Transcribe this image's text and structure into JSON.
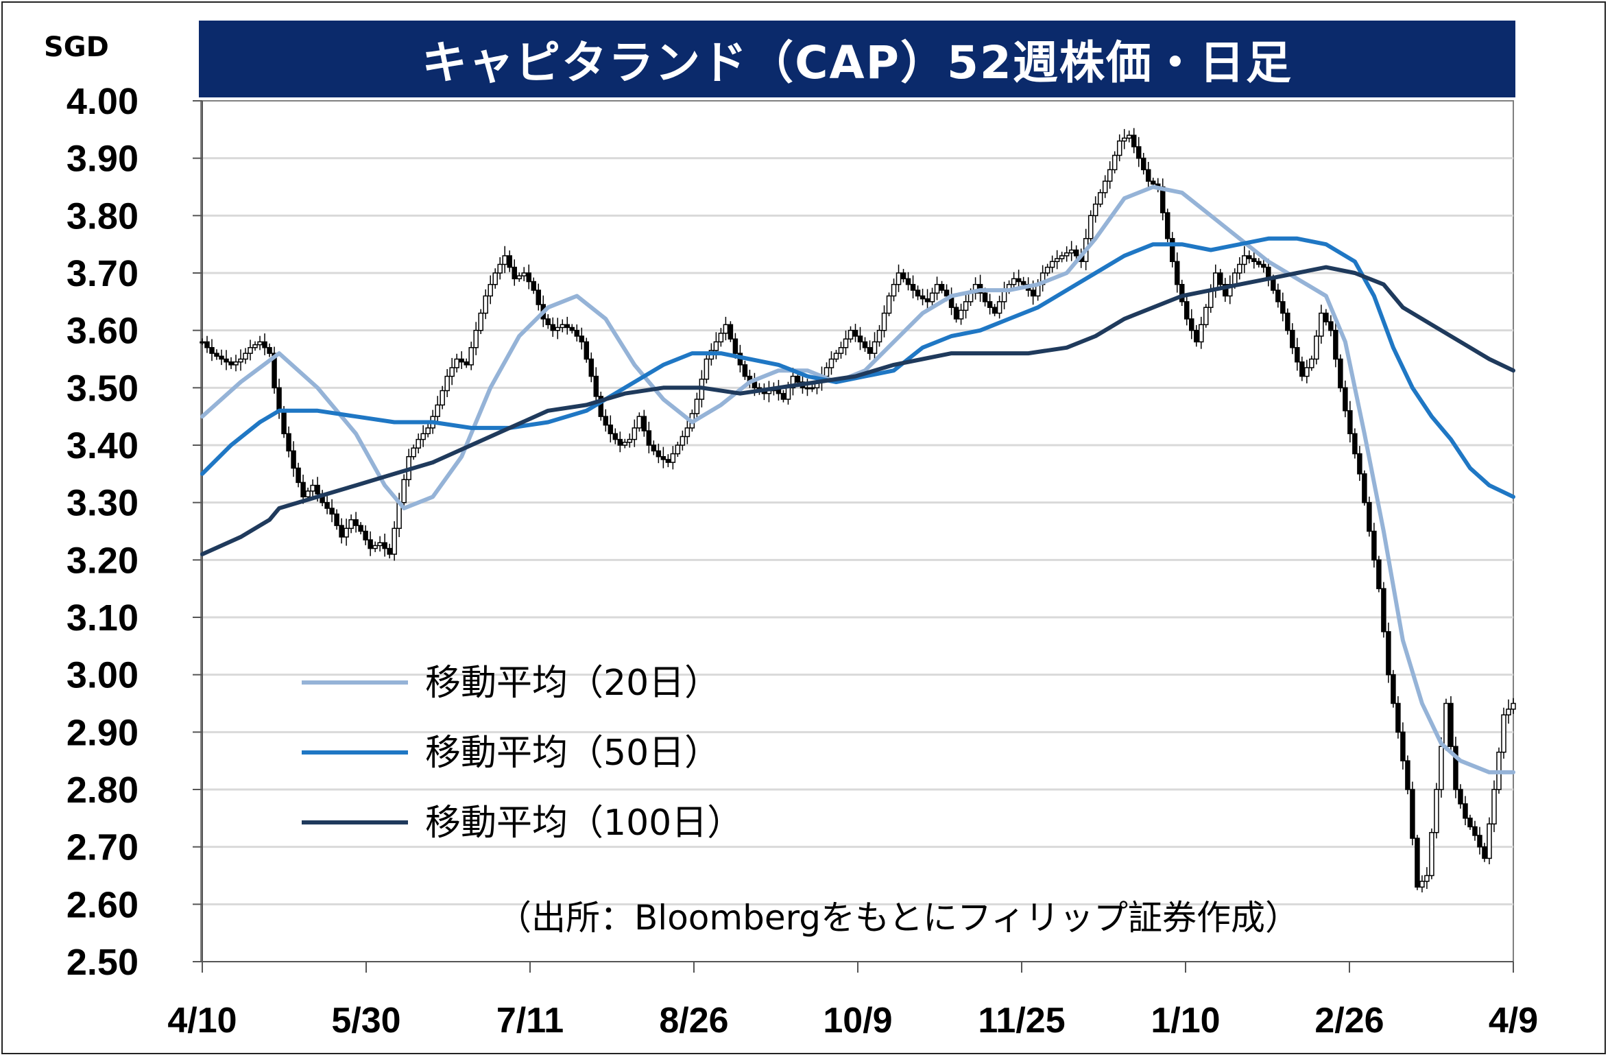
{
  "title": "キャピタランド（CAP）52週株価・日足",
  "unit": "SGD",
  "source": "（出所：Bloombergをもとにフィリップ証券作成）",
  "chart_data": {
    "type": "candlestick",
    "title": "キャピタランド（CAP）52週株価・日足",
    "ylabel": "SGD",
    "ylim": [
      2.5,
      4.0
    ],
    "y_ticks": [
      "4.00",
      "3.90",
      "3.80",
      "3.70",
      "3.60",
      "3.50",
      "3.40",
      "3.30",
      "3.20",
      "3.10",
      "3.00",
      "2.90",
      "2.80",
      "2.70",
      "2.60",
      "2.50"
    ],
    "x_ticks": [
      "4/10",
      "5/30",
      "7/11",
      "8/26",
      "10/9",
      "11/25",
      "1/10",
      "2/26",
      "4/9"
    ],
    "grid": true,
    "legend_position": "lower-left",
    "close_anchors": [
      [
        0,
        3.58
      ],
      [
        2,
        3.56
      ],
      [
        4,
        3.55
      ],
      [
        6,
        3.54
      ],
      [
        8,
        3.55
      ],
      [
        10,
        3.57
      ],
      [
        12,
        3.58
      ],
      [
        14,
        3.56
      ],
      [
        15,
        3.5
      ],
      [
        17,
        3.42
      ],
      [
        19,
        3.36
      ],
      [
        21,
        3.31
      ],
      [
        23,
        3.33
      ],
      [
        25,
        3.3
      ],
      [
        27,
        3.28
      ],
      [
        29,
        3.24
      ],
      [
        31,
        3.27
      ],
      [
        33,
        3.25
      ],
      [
        35,
        3.22
      ],
      [
        37,
        3.23
      ],
      [
        39,
        3.21
      ],
      [
        41,
        3.3
      ],
      [
        43,
        3.38
      ],
      [
        45,
        3.41
      ],
      [
        47,
        3.43
      ],
      [
        49,
        3.47
      ],
      [
        51,
        3.52
      ],
      [
        53,
        3.55
      ],
      [
        55,
        3.54
      ],
      [
        57,
        3.6
      ],
      [
        59,
        3.66
      ],
      [
        61,
        3.7
      ],
      [
        63,
        3.73
      ],
      [
        65,
        3.69
      ],
      [
        67,
        3.7
      ],
      [
        69,
        3.67
      ],
      [
        71,
        3.62
      ],
      [
        73,
        3.6
      ],
      [
        75,
        3.61
      ],
      [
        77,
        3.6
      ],
      [
        79,
        3.58
      ],
      [
        81,
        3.52
      ],
      [
        83,
        3.45
      ],
      [
        85,
        3.42
      ],
      [
        87,
        3.4
      ],
      [
        89,
        3.41
      ],
      [
        91,
        3.45
      ],
      [
        93,
        3.4
      ],
      [
        95,
        3.38
      ],
      [
        97,
        3.37
      ],
      [
        99,
        3.4
      ],
      [
        101,
        3.43
      ],
      [
        103,
        3.48
      ],
      [
        105,
        3.55
      ],
      [
        107,
        3.58
      ],
      [
        109,
        3.61
      ],
      [
        111,
        3.56
      ],
      [
        113,
        3.52
      ],
      [
        115,
        3.5
      ],
      [
        117,
        3.49
      ],
      [
        119,
        3.5
      ],
      [
        121,
        3.48
      ],
      [
        123,
        3.52
      ],
      [
        125,
        3.5
      ],
      [
        127,
        3.5
      ],
      [
        129,
        3.52
      ],
      [
        131,
        3.55
      ],
      [
        133,
        3.57
      ],
      [
        135,
        3.6
      ],
      [
        137,
        3.58
      ],
      [
        139,
        3.56
      ],
      [
        141,
        3.6
      ],
      [
        143,
        3.66
      ],
      [
        145,
        3.7
      ],
      [
        147,
        3.68
      ],
      [
        149,
        3.66
      ],
      [
        151,
        3.65
      ],
      [
        153,
        3.68
      ],
      [
        155,
        3.66
      ],
      [
        157,
        3.62
      ],
      [
        159,
        3.65
      ],
      [
        161,
        3.68
      ],
      [
        163,
        3.65
      ],
      [
        165,
        3.63
      ],
      [
        167,
        3.67
      ],
      [
        169,
        3.69
      ],
      [
        171,
        3.68
      ],
      [
        173,
        3.66
      ],
      [
        175,
        3.7
      ],
      [
        177,
        3.72
      ],
      [
        179,
        3.73
      ],
      [
        181,
        3.74
      ],
      [
        183,
        3.72
      ],
      [
        185,
        3.8
      ],
      [
        187,
        3.84
      ],
      [
        189,
        3.88
      ],
      [
        191,
        3.93
      ],
      [
        193,
        3.94
      ],
      [
        195,
        3.9
      ],
      [
        197,
        3.86
      ],
      [
        199,
        3.85
      ],
      [
        201,
        3.76
      ],
      [
        203,
        3.68
      ],
      [
        205,
        3.62
      ],
      [
        207,
        3.58
      ],
      [
        209,
        3.64
      ],
      [
        211,
        3.7
      ],
      [
        213,
        3.66
      ],
      [
        215,
        3.7
      ],
      [
        217,
        3.73
      ],
      [
        219,
        3.72
      ],
      [
        221,
        3.71
      ],
      [
        223,
        3.67
      ],
      [
        225,
        3.63
      ],
      [
        227,
        3.57
      ],
      [
        229,
        3.52
      ],
      [
        231,
        3.55
      ],
      [
        233,
        3.63
      ],
      [
        235,
        3.6
      ],
      [
        237,
        3.5
      ],
      [
        239,
        3.42
      ],
      [
        241,
        3.35
      ],
      [
        243,
        3.25
      ],
      [
        245,
        3.15
      ],
      [
        247,
        3.0
      ],
      [
        249,
        2.9
      ],
      [
        251,
        2.8
      ],
      [
        253,
        2.63
      ],
      [
        255,
        2.65
      ],
      [
        257,
        2.8
      ],
      [
        259,
        2.95
      ],
      [
        261,
        2.8
      ],
      [
        263,
        2.75
      ],
      [
        265,
        2.72
      ],
      [
        267,
        2.68
      ],
      [
        269,
        2.8
      ],
      [
        271,
        2.93
      ],
      [
        273,
        2.95
      ]
    ],
    "series": [
      {
        "name": "移動平均（20日）",
        "color": "#95b3d7",
        "points": [
          [
            0,
            3.45
          ],
          [
            8,
            3.51
          ],
          [
            16,
            3.56
          ],
          [
            24,
            3.5
          ],
          [
            32,
            3.42
          ],
          [
            38,
            3.33
          ],
          [
            42,
            3.29
          ],
          [
            48,
            3.31
          ],
          [
            54,
            3.38
          ],
          [
            60,
            3.5
          ],
          [
            66,
            3.59
          ],
          [
            72,
            3.64
          ],
          [
            78,
            3.66
          ],
          [
            84,
            3.62
          ],
          [
            90,
            3.54
          ],
          [
            96,
            3.48
          ],
          [
            102,
            3.44
          ],
          [
            108,
            3.47
          ],
          [
            114,
            3.51
          ],
          [
            120,
            3.53
          ],
          [
            126,
            3.53
          ],
          [
            132,
            3.51
          ],
          [
            138,
            3.53
          ],
          [
            144,
            3.58
          ],
          [
            150,
            3.63
          ],
          [
            156,
            3.66
          ],
          [
            162,
            3.67
          ],
          [
            168,
            3.67
          ],
          [
            174,
            3.68
          ],
          [
            180,
            3.7
          ],
          [
            186,
            3.76
          ],
          [
            192,
            3.83
          ],
          [
            198,
            3.85
          ],
          [
            204,
            3.84
          ],
          [
            210,
            3.8
          ],
          [
            216,
            3.76
          ],
          [
            222,
            3.72
          ],
          [
            228,
            3.69
          ],
          [
            234,
            3.66
          ],
          [
            238,
            3.58
          ],
          [
            242,
            3.42
          ],
          [
            246,
            3.25
          ],
          [
            250,
            3.06
          ],
          [
            254,
            2.95
          ],
          [
            258,
            2.88
          ],
          [
            262,
            2.85
          ],
          [
            268,
            2.83
          ],
          [
            273,
            2.83
          ]
        ]
      },
      {
        "name": "移動平均（50日）",
        "color": "#1f77c4",
        "points": [
          [
            0,
            3.35
          ],
          [
            6,
            3.4
          ],
          [
            12,
            3.44
          ],
          [
            16,
            3.46
          ],
          [
            24,
            3.46
          ],
          [
            32,
            3.45
          ],
          [
            40,
            3.44
          ],
          [
            48,
            3.44
          ],
          [
            56,
            3.43
          ],
          [
            64,
            3.43
          ],
          [
            72,
            3.44
          ],
          [
            80,
            3.46
          ],
          [
            88,
            3.5
          ],
          [
            96,
            3.54
          ],
          [
            102,
            3.56
          ],
          [
            108,
            3.56
          ],
          [
            114,
            3.55
          ],
          [
            120,
            3.54
          ],
          [
            126,
            3.52
          ],
          [
            132,
            3.51
          ],
          [
            138,
            3.52
          ],
          [
            144,
            3.53
          ],
          [
            150,
            3.57
          ],
          [
            156,
            3.59
          ],
          [
            162,
            3.6
          ],
          [
            168,
            3.62
          ],
          [
            174,
            3.64
          ],
          [
            180,
            3.67
          ],
          [
            186,
            3.7
          ],
          [
            192,
            3.73
          ],
          [
            198,
            3.75
          ],
          [
            204,
            3.75
          ],
          [
            210,
            3.74
          ],
          [
            216,
            3.75
          ],
          [
            222,
            3.76
          ],
          [
            228,
            3.76
          ],
          [
            234,
            3.75
          ],
          [
            240,
            3.72
          ],
          [
            244,
            3.66
          ],
          [
            248,
            3.57
          ],
          [
            252,
            3.5
          ],
          [
            256,
            3.45
          ],
          [
            260,
            3.41
          ],
          [
            264,
            3.36
          ],
          [
            268,
            3.33
          ],
          [
            273,
            3.31
          ]
        ]
      },
      {
        "name": "移動平均（100日）",
        "color": "#1f3a5c",
        "points": [
          [
            0,
            3.21
          ],
          [
            8,
            3.24
          ],
          [
            14,
            3.27
          ],
          [
            16,
            3.29
          ],
          [
            24,
            3.31
          ],
          [
            32,
            3.33
          ],
          [
            40,
            3.35
          ],
          [
            48,
            3.37
          ],
          [
            56,
            3.4
          ],
          [
            64,
            3.43
          ],
          [
            72,
            3.46
          ],
          [
            80,
            3.47
          ],
          [
            88,
            3.49
          ],
          [
            96,
            3.5
          ],
          [
            104,
            3.5
          ],
          [
            112,
            3.49
          ],
          [
            120,
            3.5
          ],
          [
            128,
            3.51
          ],
          [
            136,
            3.52
          ],
          [
            144,
            3.54
          ],
          [
            150,
            3.55
          ],
          [
            156,
            3.56
          ],
          [
            164,
            3.56
          ],
          [
            172,
            3.56
          ],
          [
            180,
            3.57
          ],
          [
            186,
            3.59
          ],
          [
            192,
            3.62
          ],
          [
            198,
            3.64
          ],
          [
            204,
            3.66
          ],
          [
            210,
            3.67
          ],
          [
            216,
            3.68
          ],
          [
            222,
            3.69
          ],
          [
            228,
            3.7
          ],
          [
            234,
            3.71
          ],
          [
            240,
            3.7
          ],
          [
            246,
            3.68
          ],
          [
            250,
            3.64
          ],
          [
            256,
            3.61
          ],
          [
            262,
            3.58
          ],
          [
            268,
            3.55
          ],
          [
            273,
            3.53
          ]
        ]
      }
    ]
  }
}
